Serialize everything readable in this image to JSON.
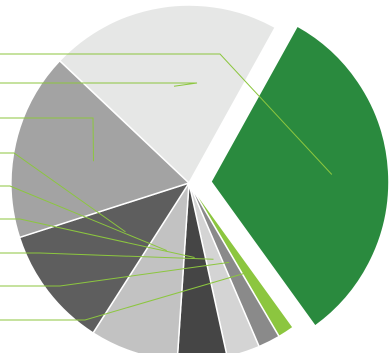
{
  "chart_data": {
    "type": "pie",
    "title": "",
    "legend": "none",
    "exploded_slice": 0,
    "slices": [
      {
        "value": 32.0,
        "color": "#2a8a3e"
      },
      {
        "value": 1.5,
        "color": "#8cc63f"
      },
      {
        "value": 2.0,
        "color": "#8a8a8a"
      },
      {
        "value": 3.0,
        "color": "#d4d4d4"
      },
      {
        "value": 4.5,
        "color": "#454545"
      },
      {
        "value": 8.0,
        "color": "#c2c2c2"
      },
      {
        "value": 11.0,
        "color": "#5e5e5e"
      },
      {
        "value": 17.0,
        "color": "#a3a3a3"
      },
      {
        "value": 21.0,
        "color": "#e6e7e6"
      }
    ],
    "leader_line_color": "#8cc63f"
  }
}
